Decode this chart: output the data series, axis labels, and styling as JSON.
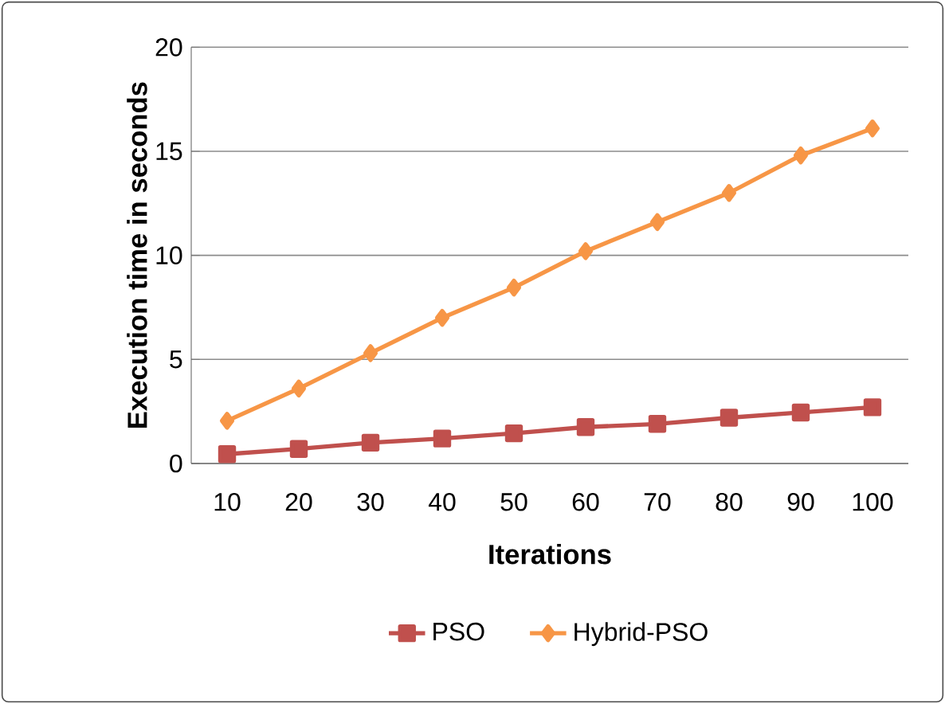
{
  "chart_data": {
    "type": "line",
    "xlabel": "Iterations",
    "ylabel": "Execution time in seconds",
    "categories": [
      "10",
      "20",
      "30",
      "40",
      "50",
      "60",
      "70",
      "80",
      "90",
      "100"
    ],
    "series": [
      {
        "name": "PSO",
        "color": "#c0504d",
        "marker": "square",
        "values": [
          0.45,
          0.7,
          1.0,
          1.2,
          1.45,
          1.75,
          1.9,
          2.2,
          2.45,
          2.7
        ]
      },
      {
        "name": "Hybrid-PSO",
        "color": "#f79646",
        "marker": "diamond",
        "values": [
          2.05,
          3.6,
          5.3,
          7.0,
          8.45,
          10.2,
          11.6,
          13.0,
          14.8,
          16.1
        ]
      }
    ],
    "ylim": [
      0,
      20
    ],
    "yticks": [
      0,
      5,
      10,
      15,
      20
    ],
    "grid": "y",
    "legend": "bottom",
    "line_style": "solid"
  }
}
